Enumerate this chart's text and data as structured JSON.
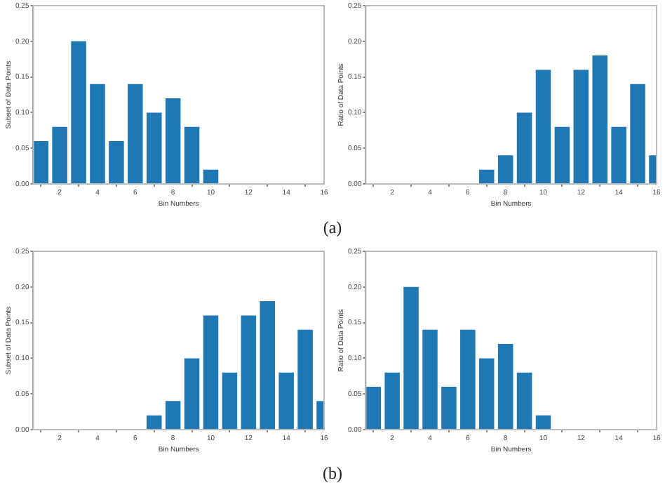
{
  "chart_data": [
    {
      "type": "bar",
      "xlabel": "Bin Numbers",
      "ylabel": "Subset of Data Points",
      "x": [
        1,
        2,
        3,
        4,
        5,
        6,
        7,
        8,
        9,
        10
      ],
      "values": [
        0.06,
        0.08,
        0.2,
        0.14,
        0.06,
        0.14,
        0.1,
        0.12,
        0.08,
        0.02
      ],
      "color": "#1f77b4",
      "xlim": [
        0.6,
        16
      ],
      "xticks": [
        2,
        4,
        6,
        8,
        10,
        12,
        14,
        16
      ],
      "ylim": [
        0,
        0.25
      ],
      "yticks": [
        {
          "value": 0,
          "label": "0.00"
        },
        {
          "value": 0.05,
          "label": "0.05"
        },
        {
          "value": 0.1,
          "label": "0.10"
        },
        {
          "value": 0.15,
          "label": "0.15"
        },
        {
          "value": 0.2,
          "label": "0.20"
        },
        {
          "value": 0.25,
          "label": "0.25"
        }
      ],
      "grid": false,
      "legend": false,
      "annotations": [
        "(a)"
      ]
    },
    {
      "type": "bar",
      "xlabel": "Bin Numbers",
      "ylabel": "Ratio of Data Points",
      "x": [
        7,
        8,
        9,
        10,
        11,
        12,
        13,
        14,
        15,
        16
      ],
      "values": [
        0.02,
        0.04,
        0.1,
        0.16,
        0.08,
        0.16,
        0.18,
        0.08,
        0.14,
        0.04
      ],
      "color": "#1f77b4",
      "xlim": [
        0.6,
        16
      ],
      "xticks": [
        2,
        4,
        6,
        8,
        10,
        12,
        14,
        16
      ],
      "ylim": [
        0,
        0.25
      ],
      "yticks": [
        {
          "value": 0,
          "label": "0.00"
        },
        {
          "value": 0.05,
          "label": "0.05"
        },
        {
          "value": 0.1,
          "label": "0.10"
        },
        {
          "value": 0.15,
          "label": "0.15"
        },
        {
          "value": 0.2,
          "label": "0.20"
        },
        {
          "value": 0.25,
          "label": "0.25"
        }
      ],
      "grid": false,
      "legend": false
    },
    {
      "type": "bar",
      "xlabel": "Bin Numbers",
      "ylabel": "Subset of Data Points",
      "x": [
        7,
        8,
        9,
        10,
        11,
        12,
        13,
        14,
        15,
        16
      ],
      "values": [
        0.02,
        0.04,
        0.1,
        0.16,
        0.08,
        0.16,
        0.18,
        0.08,
        0.14,
        0.04
      ],
      "color": "#1f77b4",
      "xlim": [
        0.6,
        16
      ],
      "xticks": [
        2,
        4,
        6,
        8,
        10,
        12,
        14,
        16
      ],
      "ylim": [
        0,
        0.25
      ],
      "yticks": [
        {
          "value": 0,
          "label": "0.00"
        },
        {
          "value": 0.05,
          "label": "0.05"
        },
        {
          "value": 0.1,
          "label": "0.10"
        },
        {
          "value": 0.15,
          "label": "0.15"
        },
        {
          "value": 0.2,
          "label": "0.20"
        },
        {
          "value": 0.25,
          "label": "0.25"
        }
      ],
      "grid": false,
      "legend": false,
      "annotations": [
        "(b)"
      ]
    },
    {
      "type": "bar",
      "xlabel": "Bin Numbers",
      "ylabel": "Ratio of Data Points",
      "x": [
        1,
        2,
        3,
        4,
        5,
        6,
        7,
        8,
        9,
        10
      ],
      "values": [
        0.06,
        0.08,
        0.2,
        0.14,
        0.06,
        0.14,
        0.1,
        0.12,
        0.08,
        0.02
      ],
      "color": "#1f77b4",
      "xlim": [
        0.6,
        16
      ],
      "xticks": [
        2,
        4,
        6,
        8,
        10,
        12,
        14,
        16
      ],
      "ylim": [
        0,
        0.25
      ],
      "yticks": [
        {
          "value": 0,
          "label": "0.00"
        },
        {
          "value": 0.05,
          "label": "0.05"
        },
        {
          "value": 0.1,
          "label": "0.10"
        },
        {
          "value": 0.15,
          "label": "0.15"
        },
        {
          "value": 0.2,
          "label": "0.20"
        },
        {
          "value": 0.25,
          "label": "0.25"
        }
      ],
      "grid": false,
      "legend": false
    }
  ]
}
